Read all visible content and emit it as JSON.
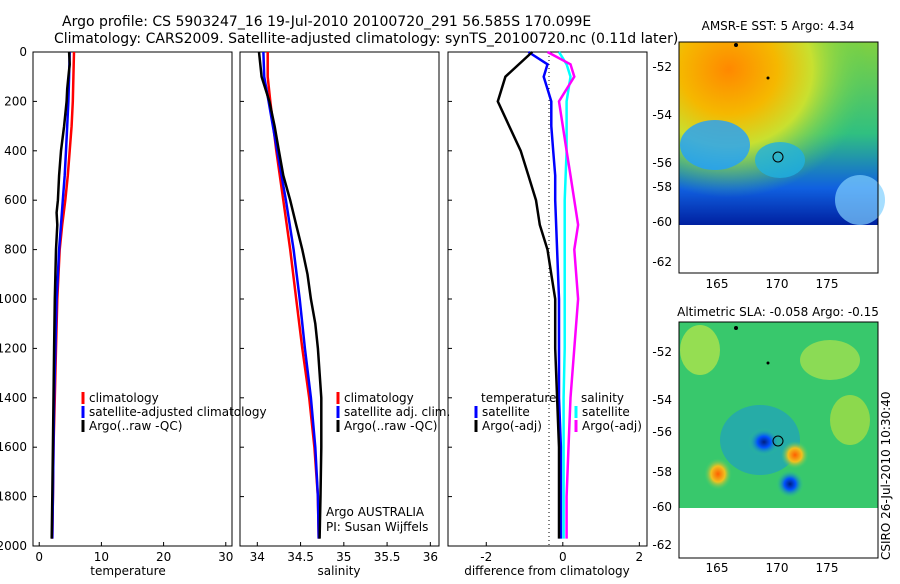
{
  "header": {
    "line1": "Argo profile: CS 5903247_16 19-Jul-2010 20100720_291 56.585S 170.099E",
    "line2": "Climatology: CARS2009. Satellite-adjusted climatology: synTS_20100720.nc (0.11d later)"
  },
  "colors": {
    "climatology": "#ff0000",
    "satellite": "#0000ff",
    "argo": "#000000",
    "satellite_sal": "#00ffff",
    "argo_sal_diff": "#ff00ff"
  },
  "y_axis": {
    "range": [
      0,
      2000
    ],
    "ticks": [
      "0",
      "200",
      "400",
      "600",
      "800",
      "1000",
      "1200",
      "1400",
      "1600",
      "1800",
      "2000"
    ],
    "inverted": true
  },
  "chart_data": [
    {
      "type": "line",
      "id": "temperature-panel",
      "xlabel": "temperature",
      "xlim": [
        -1,
        31
      ],
      "xticks": [
        "0",
        "10",
        "20",
        "30"
      ],
      "xtick_values": [
        0,
        10,
        20,
        30
      ],
      "legend": [
        "climatology",
        "satellite-adjusted climatology",
        "Argo(..raw -QC)"
      ],
      "series": [
        {
          "name": "climatology",
          "color": "#ff0000",
          "depth": [
            0,
            100,
            200,
            300,
            400,
            500,
            600,
            700,
            800,
            900,
            1000,
            1200,
            1400,
            1600,
            1800,
            1970
          ],
          "values": [
            5.6,
            5.5,
            5.4,
            5.2,
            4.9,
            4.6,
            4.2,
            3.7,
            3.3,
            3.1,
            2.9,
            2.7,
            2.5,
            2.3,
            2.2,
            2.1
          ]
        },
        {
          "name": "satellite-adjusted climatology",
          "color": "#0000ff",
          "depth": [
            0,
            100,
            200,
            300,
            400,
            500,
            600,
            700,
            800,
            900,
            1000,
            1200,
            1400,
            1600,
            1800,
            1970
          ],
          "values": [
            4.9,
            4.8,
            4.7,
            4.5,
            4.3,
            4.1,
            3.8,
            3.5,
            3.2,
            3.0,
            2.8,
            2.6,
            2.4,
            2.3,
            2.2,
            2.1
          ]
        },
        {
          "name": "Argo(..raw -QC)",
          "color": "#000000",
          "depth": [
            0,
            50,
            100,
            150,
            200,
            300,
            400,
            500,
            600,
            650,
            700,
            800,
            900,
            1000,
            1200,
            1400,
            1600,
            1800,
            1970
          ],
          "values": [
            4.8,
            4.9,
            4.7,
            4.5,
            4.4,
            4.0,
            3.5,
            3.2,
            3.0,
            2.8,
            2.9,
            2.7,
            2.6,
            2.5,
            2.4,
            2.3,
            2.2,
            2.1,
            2.0
          ]
        }
      ]
    },
    {
      "type": "line",
      "id": "salinity-panel",
      "xlabel": "salinity",
      "xlim": [
        33.8,
        36.1
      ],
      "xticks": [
        "34",
        "34.5",
        "35",
        "35.5",
        "36"
      ],
      "xtick_values": [
        34,
        34.5,
        35,
        35.5,
        36
      ],
      "legend": [
        "climatology",
        "satellite adj. clim.",
        "Argo(..raw -QC)"
      ],
      "series": [
        {
          "name": "climatology",
          "color": "#ff0000",
          "depth": [
            0,
            100,
            200,
            400,
            600,
            800,
            1000,
            1200,
            1400,
            1600,
            1800,
            1970
          ],
          "values": [
            34.12,
            34.12,
            34.15,
            34.22,
            34.3,
            34.38,
            34.45,
            34.52,
            34.6,
            34.66,
            34.7,
            34.71
          ]
        },
        {
          "name": "satellite adj. clim.",
          "color": "#0000ff",
          "depth": [
            0,
            100,
            200,
            400,
            600,
            800,
            1000,
            1200,
            1400,
            1600,
            1800,
            1970
          ],
          "values": [
            34.07,
            34.08,
            34.13,
            34.23,
            34.33,
            34.42,
            34.49,
            34.55,
            34.62,
            34.67,
            34.7,
            34.71
          ]
        },
        {
          "name": "Argo(..raw -QC)",
          "color": "#000000",
          "depth": [
            0,
            100,
            200,
            300,
            400,
            500,
            600,
            700,
            800,
            900,
            1000,
            1100,
            1200,
            1300,
            1400,
            1600,
            1800,
            1970
          ],
          "values": [
            34.02,
            34.05,
            34.14,
            34.2,
            34.25,
            34.3,
            34.38,
            34.45,
            34.52,
            34.58,
            34.62,
            34.67,
            34.7,
            34.72,
            34.74,
            34.74,
            34.73,
            34.72
          ]
        }
      ]
    },
    {
      "type": "line",
      "id": "difference-panel",
      "xlabel": "difference from climatology",
      "xlim": [
        -3,
        2.2
      ],
      "xticks": [
        "-2",
        "0",
        "2"
      ],
      "xtick_values": [
        -2,
        0,
        2
      ],
      "legend_temperature_title": "temperature",
      "legend_salinity_title": "salinity",
      "legend_temperature": [
        "satellite",
        "Argo(-adj)"
      ],
      "legend_salinity": [
        "satellite",
        "Argo(-adj)"
      ],
      "series": [
        {
          "name": "temperature satellite",
          "color": "#0000ff",
          "depth": [
            0,
            50,
            100,
            150,
            200,
            300,
            400,
            500,
            600,
            800,
            1000,
            1200,
            1400,
            1600,
            1800,
            1970
          ],
          "values": [
            -0.9,
            -0.4,
            -0.5,
            -0.4,
            -0.3,
            -0.3,
            -0.25,
            -0.2,
            -0.2,
            -0.15,
            -0.1,
            -0.1,
            -0.1,
            -0.05,
            -0.05,
            -0.05
          ]
        },
        {
          "name": "temperature Argo(-adj)",
          "color": "#000000",
          "depth": [
            0,
            100,
            200,
            300,
            400,
            500,
            600,
            700,
            800,
            900,
            1000,
            1200,
            1400,
            1600,
            1800,
            1970
          ],
          "values": [
            -0.8,
            -1.5,
            -1.7,
            -1.4,
            -1.1,
            -0.9,
            -0.7,
            -0.6,
            -0.4,
            -0.3,
            -0.2,
            -0.2,
            -0.15,
            -0.1,
            -0.1,
            -0.1
          ]
        },
        {
          "name": "salinity satellite",
          "color": "#00ffff",
          "depth": [
            0,
            50,
            100,
            200,
            400,
            600,
            800,
            1000,
            1200,
            1400,
            1600,
            1800,
            1970
          ],
          "values": [
            -0.1,
            0.1,
            0.2,
            0.1,
            0.1,
            0.05,
            0.05,
            0.05,
            0.05,
            0.02,
            0.02,
            0.02,
            0.02
          ]
        },
        {
          "name": "salinity Argo(-adj)",
          "color": "#ff00ff",
          "depth": [
            0,
            50,
            100,
            200,
            300,
            400,
            500,
            600,
            700,
            800,
            1000,
            1200,
            1400,
            1600,
            1800,
            1970
          ],
          "values": [
            -0.4,
            0.2,
            0.3,
            -0.1,
            0.0,
            0.1,
            0.2,
            0.3,
            0.4,
            0.3,
            0.4,
            0.3,
            0.2,
            0.15,
            0.1,
            0.1
          ]
        }
      ]
    }
  ],
  "maps": [
    {
      "title": "AMSR-E SST: 5 Argo: 4.34",
      "yticks": [
        "-52",
        "-54",
        "-56",
        "-58",
        "-60",
        "-62"
      ],
      "xticks": [
        "165",
        "170",
        "175"
      ]
    },
    {
      "title": "Altimetric SLA: -0.058 Argo: -0.15",
      "yticks": [
        "-52",
        "-54",
        "-56",
        "-58",
        "-60",
        "-62"
      ],
      "xticks": [
        "165",
        "170",
        "175"
      ]
    }
  ],
  "watermark": "CSIRO 26-Jul-2010 10:30:40",
  "credits": {
    "line1": "Argo AUSTRALIA",
    "line2": "PI: Susan Wijffels"
  }
}
